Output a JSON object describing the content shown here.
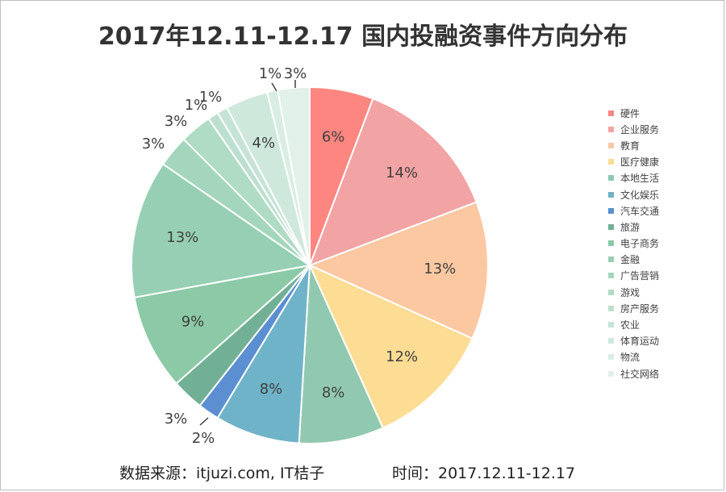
{
  "title": "2017年12.11-12.17 国内投融资事件方向分布",
  "footer": {
    "source": "数据来源：itjuzi.com, IT桔子",
    "time": "时间：2017.12.11-12.17"
  },
  "chart_data": {
    "type": "pie",
    "title": "2017年12.11-12.17 国内投融资事件方向分布",
    "legend_position": "right",
    "start_angle_deg": 0,
    "direction": "clockwise",
    "slices": [
      {
        "name": "硬件",
        "value": 6,
        "label": "6%",
        "color": "#fe8680"
      },
      {
        "name": "企业服务",
        "value": 14,
        "label": "14%",
        "color": "#f2a3a4"
      },
      {
        "name": "教育",
        "value": 13,
        "label": "13%",
        "color": "#fcc8a2"
      },
      {
        "name": "医疗健康",
        "value": 12,
        "label": "12%",
        "color": "#fddc93"
      },
      {
        "name": "本地生活",
        "value": 8,
        "label": "8%",
        "color": "#91c9b0"
      },
      {
        "name": "文化娱乐",
        "value": 8,
        "label": "8%",
        "color": "#6fb3c8"
      },
      {
        "name": "汽车交通",
        "value": 2,
        "label": "2%",
        "color": "#5b8fd1"
      },
      {
        "name": "旅游",
        "value": 3,
        "label": "3%",
        "color": "#72b096"
      },
      {
        "name": "电子商务",
        "value": 9,
        "label": "9%",
        "color": "#8cc9a6"
      },
      {
        "name": "金融",
        "value": 13,
        "label": "13%",
        "color": "#96cfb3"
      },
      {
        "name": "广告营销",
        "value": 3,
        "label": "3%",
        "color": "#a4d6bd"
      },
      {
        "name": "游戏",
        "value": 3,
        "label": "3%",
        "color": "#b0dbc4"
      },
      {
        "name": "房产服务",
        "value": 1,
        "label": "1%",
        "color": "#bddfd0"
      },
      {
        "name": "农业",
        "value": 1,
        "label": "1%",
        "color": "#c6e3d7"
      },
      {
        "name": "体育运动",
        "value": 4,
        "label": "4%",
        "color": "#cfe8dc"
      },
      {
        "name": "物流",
        "value": 1,
        "label": "1%",
        "color": "#d9ede3"
      },
      {
        "name": "社交网络",
        "value": 3,
        "label": "3%",
        "color": "#e1f1e9"
      }
    ]
  }
}
